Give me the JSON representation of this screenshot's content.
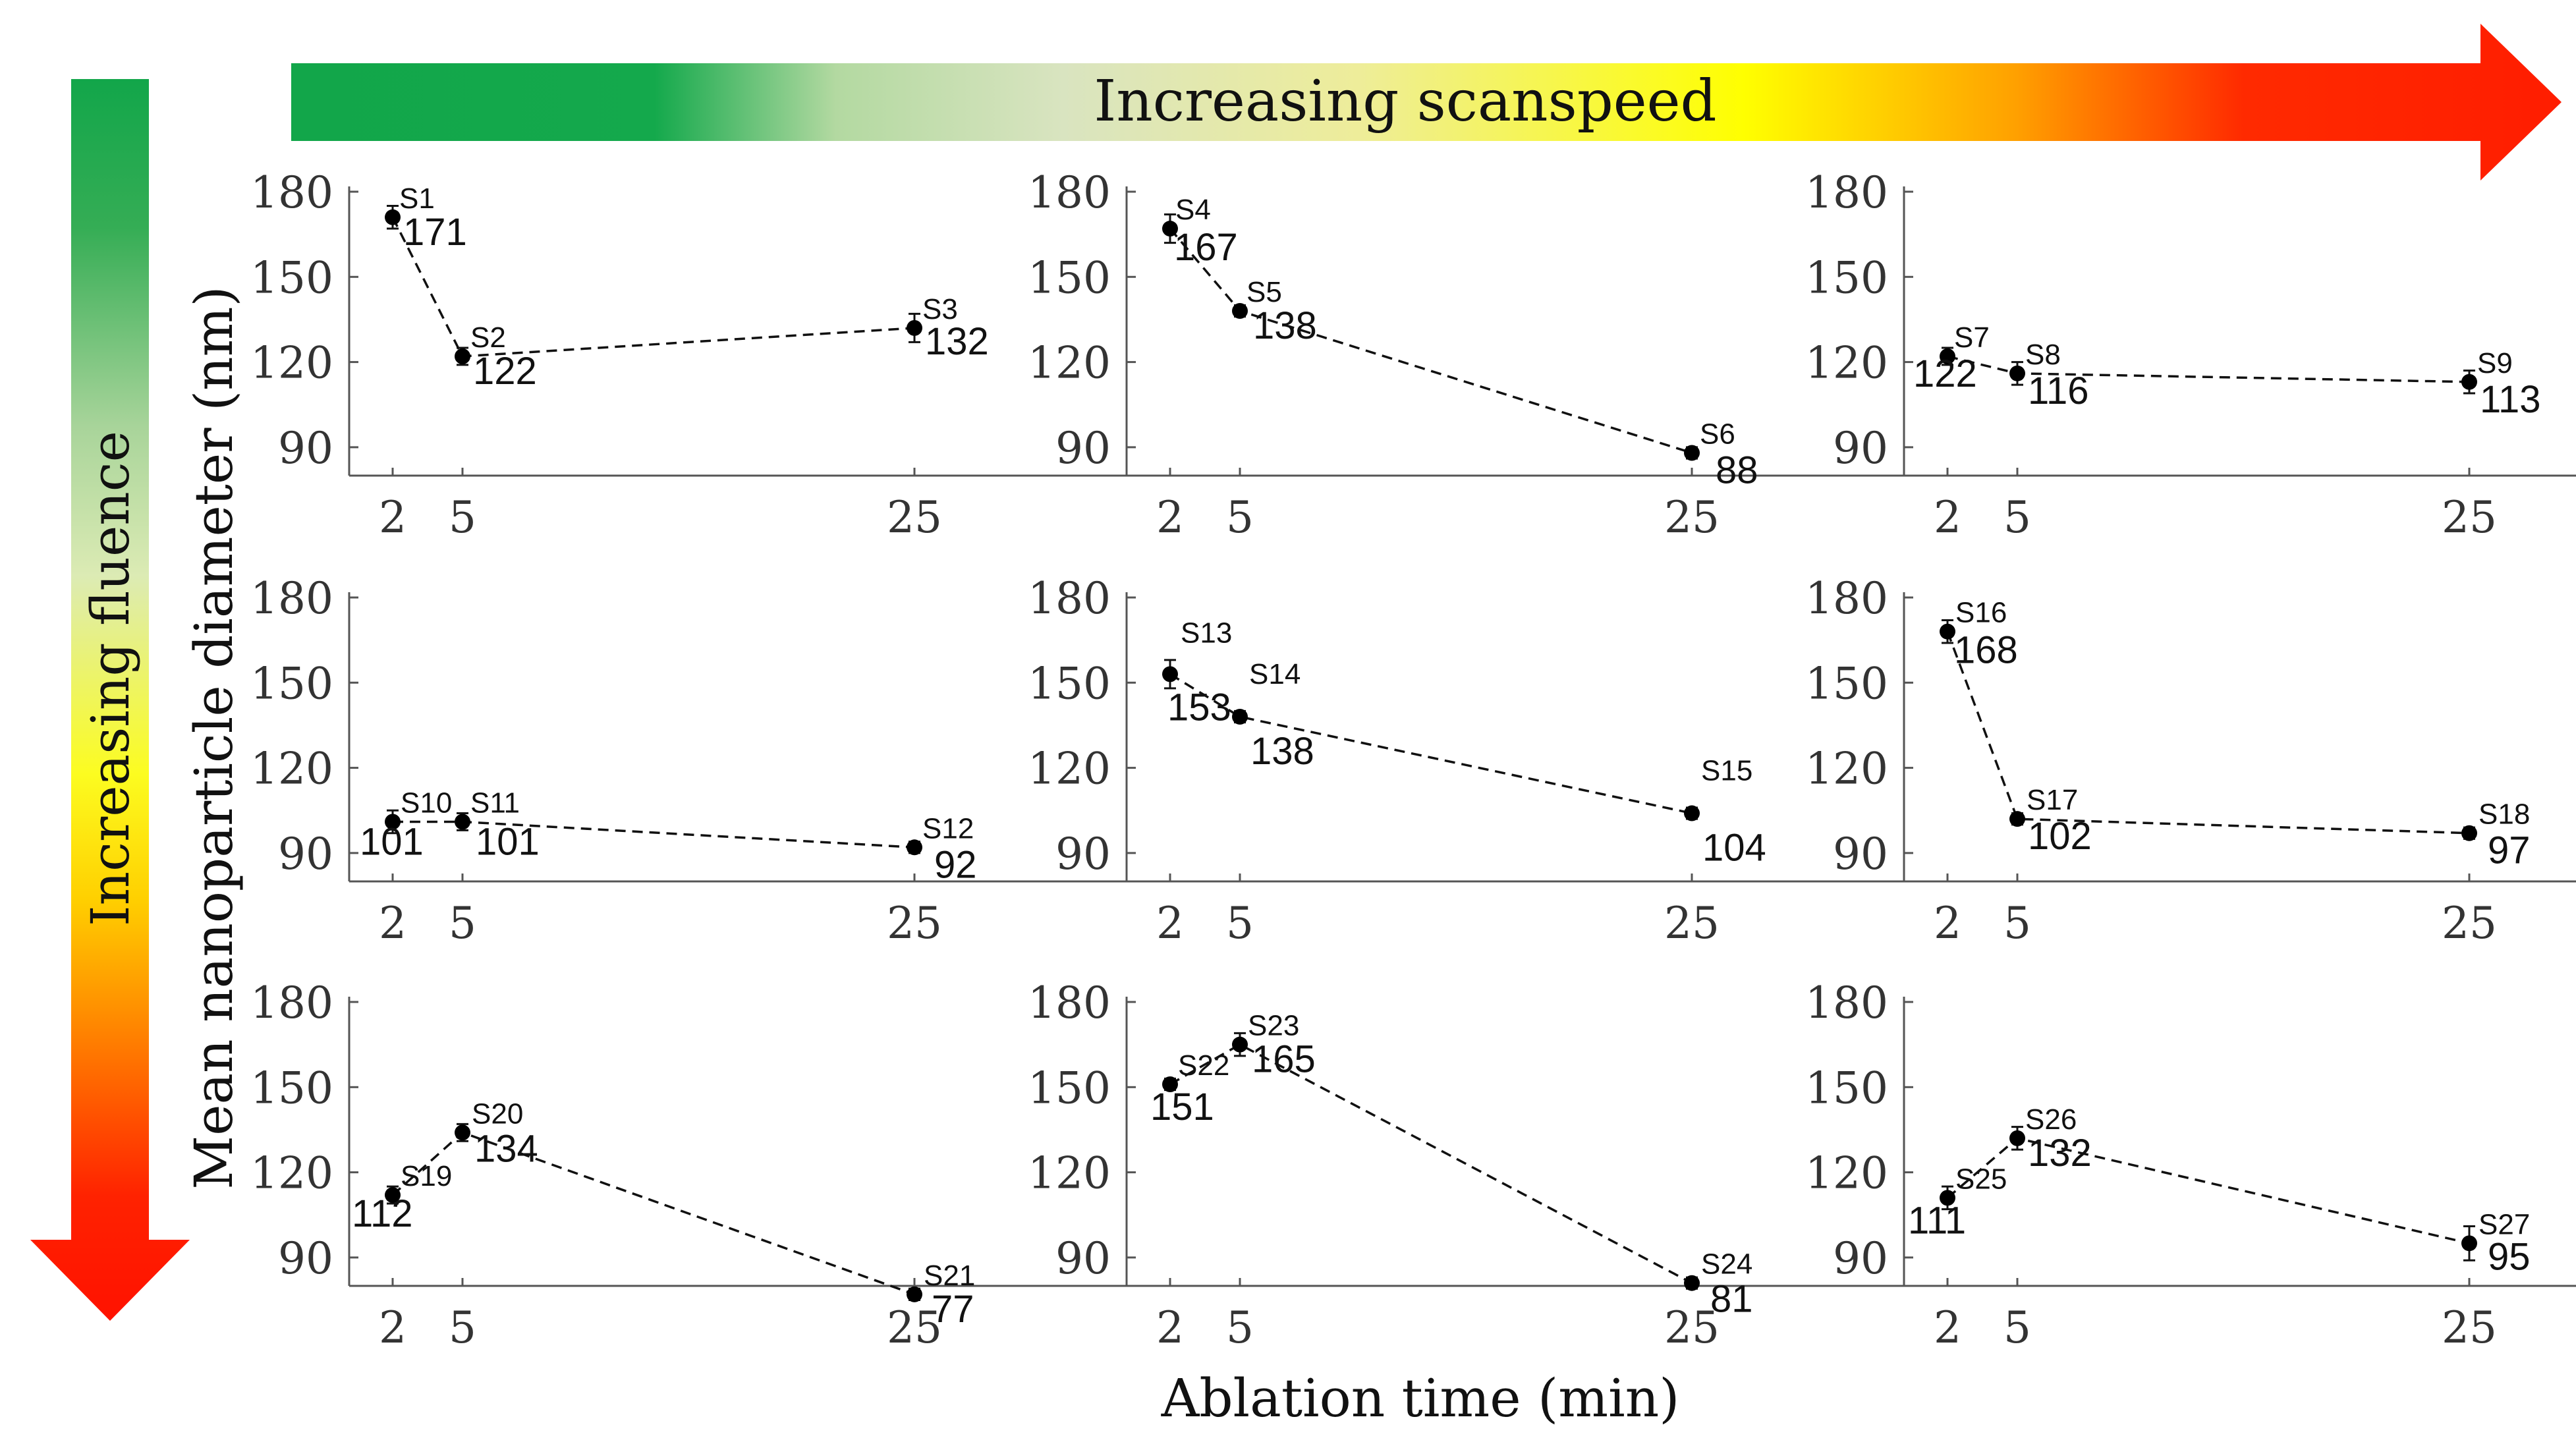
{
  "banner": {
    "scanspeed_label": "Increasing scanspeed",
    "fluence_label": "Increasing fluence",
    "gradient_colors": [
      "#12a64a",
      "#dfe6c0",
      "#ffff00",
      "#ff1d00"
    ]
  },
  "y_axis_label": "Mean nanoparticle diameter (nm)",
  "x_axis_label": "Ablation time (min)",
  "chart_data": [
    {
      "type": "line",
      "x": [
        2,
        5,
        25
      ],
      "xticks": [
        2,
        5,
        25
      ],
      "yticks": [
        90,
        120,
        150,
        180
      ],
      "ylim": [
        80,
        180
      ],
      "labels": [
        "S1",
        "S2",
        "S3"
      ],
      "values": [
        171,
        122,
        132
      ],
      "errors": [
        4,
        3,
        5
      ]
    },
    {
      "type": "line",
      "x": [
        2,
        5,
        25
      ],
      "xticks": [
        2,
        5,
        25
      ],
      "yticks": [
        90,
        120,
        150,
        180
      ],
      "ylim": [
        80,
        180
      ],
      "labels": [
        "S4",
        "S5",
        "S6"
      ],
      "values": [
        167,
        138,
        88
      ],
      "errors": [
        5,
        2,
        2
      ]
    },
    {
      "type": "line",
      "x": [
        2,
        5,
        25
      ],
      "xticks": [
        2,
        5,
        25
      ],
      "yticks": [
        90,
        120,
        150,
        180
      ],
      "ylim": [
        80,
        180
      ],
      "labels": [
        "S7",
        "S8",
        "S9"
      ],
      "values": [
        122,
        116,
        113
      ],
      "errors": [
        3,
        4,
        4
      ]
    },
    {
      "type": "line",
      "x": [
        2,
        5,
        25
      ],
      "xticks": [
        2,
        5,
        25
      ],
      "yticks": [
        90,
        120,
        150,
        180
      ],
      "ylim": [
        80,
        180
      ],
      "labels": [
        "S10",
        "S11",
        "S12"
      ],
      "values": [
        101,
        101,
        92
      ],
      "errors": [
        4,
        3,
        2
      ]
    },
    {
      "type": "line",
      "x": [
        2,
        5,
        25
      ],
      "xticks": [
        2,
        5,
        25
      ],
      "yticks": [
        90,
        120,
        150,
        180
      ],
      "ylim": [
        80,
        180
      ],
      "labels": [
        "S13",
        "S14",
        "S15"
      ],
      "values": [
        153,
        138,
        104
      ],
      "errors": [
        5,
        2,
        2
      ]
    },
    {
      "type": "line",
      "x": [
        2,
        5,
        25
      ],
      "xticks": [
        2,
        5,
        25
      ],
      "yticks": [
        90,
        120,
        150,
        180
      ],
      "ylim": [
        80,
        180
      ],
      "labels": [
        "S16",
        "S17",
        "S18"
      ],
      "values": [
        168,
        102,
        97
      ],
      "errors": [
        4,
        2,
        2
      ]
    },
    {
      "type": "line",
      "x": [
        2,
        5,
        25
      ],
      "xticks": [
        2,
        5,
        25
      ],
      "yticks": [
        90,
        120,
        150,
        180
      ],
      "ylim": [
        80,
        180
      ],
      "labels": [
        "S19",
        "S20",
        "S21"
      ],
      "values": [
        112,
        134,
        77
      ],
      "errors": [
        3,
        3,
        2
      ]
    },
    {
      "type": "line",
      "x": [
        2,
        5,
        25
      ],
      "xticks": [
        2,
        5,
        25
      ],
      "yticks": [
        90,
        120,
        150,
        180
      ],
      "ylim": [
        80,
        180
      ],
      "labels": [
        "S22",
        "S23",
        "S24"
      ],
      "values": [
        151,
        165,
        81
      ],
      "errors": [
        2,
        4,
        2
      ]
    },
    {
      "type": "line",
      "x": [
        2,
        5,
        25
      ],
      "xticks": [
        2,
        5,
        25
      ],
      "yticks": [
        90,
        120,
        150,
        180
      ],
      "ylim": [
        80,
        180
      ],
      "labels": [
        "S25",
        "S26",
        "S27"
      ],
      "values": [
        111,
        132,
        95
      ],
      "errors": [
        4,
        4,
        6
      ]
    }
  ]
}
